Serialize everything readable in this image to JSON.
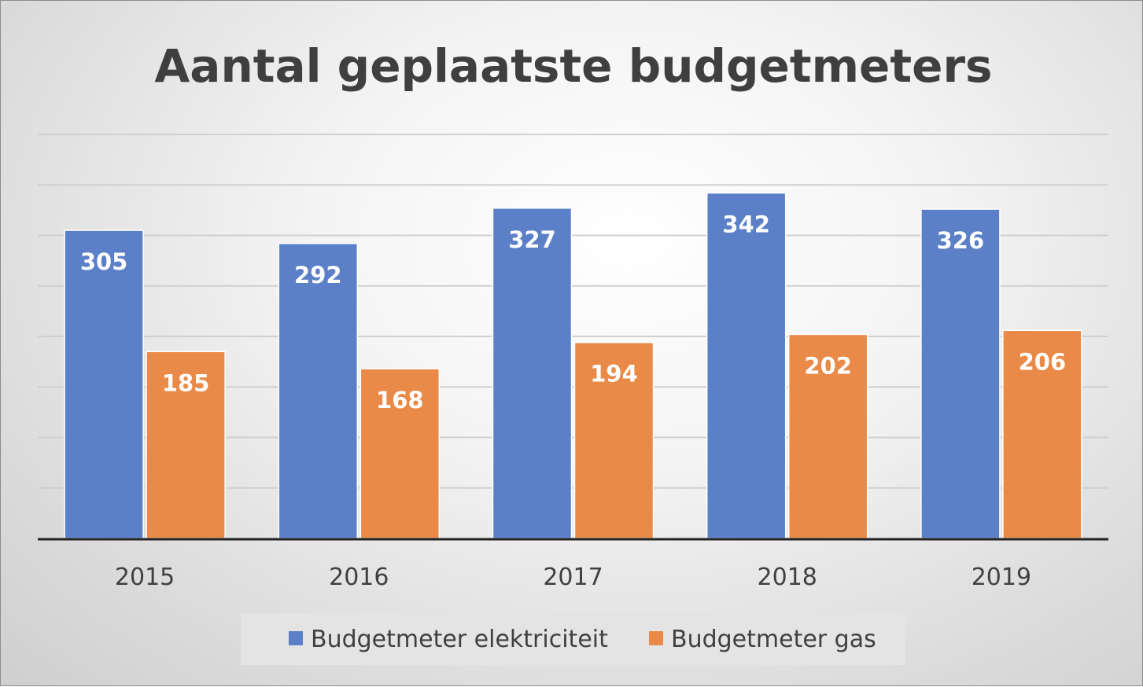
{
  "chart_data": {
    "type": "bar",
    "title": "Aantal geplaatste budgetmeters",
    "xlabel": "",
    "ylabel": "",
    "categories": [
      "2015",
      "2016",
      "2017",
      "2018",
      "2019"
    ],
    "series": [
      {
        "name": "Budgetmeter elektriciteit",
        "color": "#5b80c8",
        "values": [
          305,
          292,
          327,
          342,
          326
        ]
      },
      {
        "name": "Budgetmeter gas",
        "color": "#ea8a48",
        "values": [
          185,
          168,
          194,
          202,
          206
        ]
      }
    ],
    "ylim": [
      0,
      400
    ],
    "grid": true,
    "gridline_count": 8,
    "legend": "bottom"
  }
}
